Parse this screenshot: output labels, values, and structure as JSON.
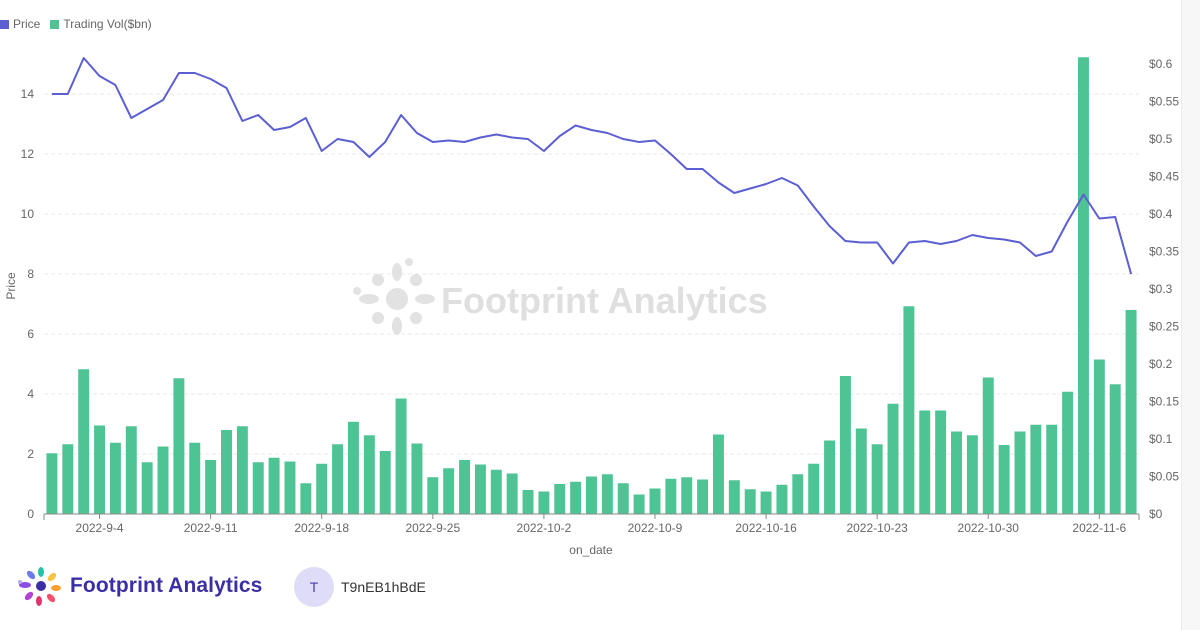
{
  "legend": {
    "price_label": "Price",
    "volume_label": "Trading Vol($bn)"
  },
  "colors": {
    "price": "#5b5fd1",
    "volume": "#4ec495",
    "grid": "#e8e8e8",
    "axis_text": "#666666",
    "watermark": "#dddddd"
  },
  "watermark_text": "Footprint Analytics",
  "footer": {
    "brand_name": "Footprint Analytics",
    "user_initial": "T",
    "user_name": "T9nEB1hBdE",
    "brand_icon": "footprint-flower-logo"
  },
  "chart_data": {
    "type": "bar+line",
    "xlabel": "on_date",
    "ylabel_left": "Price",
    "ylabel_right": "",
    "ylim_left": [
      0,
      15
    ],
    "ylim_right": [
      0,
      0.6
    ],
    "left_ticks": [
      0,
      2,
      4,
      6,
      8,
      10,
      12,
      14
    ],
    "right_ticks": [
      "$0",
      "$0.05",
      "$0.1",
      "$0.15",
      "$0.2",
      "$0.25",
      "$0.3",
      "$0.35",
      "$0.4",
      "$0.45",
      "$0.5",
      "$0.55",
      "$0.6"
    ],
    "right_tick_values": [
      0,
      0.05,
      0.1,
      0.15,
      0.2,
      0.25,
      0.3,
      0.35,
      0.4,
      0.45,
      0.5,
      0.55,
      0.6
    ],
    "x_tick_labels": [
      "2022-9-4",
      "2022-9-11",
      "2022-9-18",
      "2022-9-25",
      "2022-10-2",
      "2022-10-9",
      "2022-10-16",
      "2022-10-23",
      "2022-10-30",
      "2022-11-6"
    ],
    "x_tick_indices": [
      3,
      10,
      17,
      24,
      31,
      38,
      45,
      52,
      59,
      66
    ],
    "grid": true,
    "legend_position": "top-left",
    "dates": [
      "2022-9-1",
      "2022-9-2",
      "2022-9-3",
      "2022-9-4",
      "2022-9-5",
      "2022-9-6",
      "2022-9-7",
      "2022-9-8",
      "2022-9-9",
      "2022-9-10",
      "2022-9-11",
      "2022-9-12",
      "2022-9-13",
      "2022-9-14",
      "2022-9-15",
      "2022-9-16",
      "2022-9-17",
      "2022-9-18",
      "2022-9-19",
      "2022-9-20",
      "2022-9-21",
      "2022-9-22",
      "2022-9-23",
      "2022-9-24",
      "2022-9-25",
      "2022-9-26",
      "2022-9-27",
      "2022-9-28",
      "2022-9-29",
      "2022-9-30",
      "2022-10-1",
      "2022-10-2",
      "2022-10-3",
      "2022-10-4",
      "2022-10-5",
      "2022-10-6",
      "2022-10-7",
      "2022-10-8",
      "2022-10-9",
      "2022-10-10",
      "2022-10-11",
      "2022-10-12",
      "2022-10-13",
      "2022-10-14",
      "2022-10-15",
      "2022-10-16",
      "2022-10-17",
      "2022-10-18",
      "2022-10-19",
      "2022-10-20",
      "2022-10-21",
      "2022-10-22",
      "2022-10-23",
      "2022-10-24",
      "2022-10-25",
      "2022-10-26",
      "2022-10-27",
      "2022-10-28",
      "2022-10-29",
      "2022-10-30",
      "2022-10-31",
      "2022-11-1",
      "2022-11-2",
      "2022-11-3",
      "2022-11-4",
      "2022-11-5",
      "2022-11-6",
      "2022-11-7",
      "2022-11-8"
    ],
    "series": [
      {
        "name": "Price",
        "axis": "left",
        "kind": "line",
        "values": [
          14.0,
          14.0,
          15.2,
          14.6,
          14.3,
          13.2,
          13.5,
          13.8,
          14.7,
          14.7,
          14.5,
          14.2,
          13.1,
          13.3,
          12.8,
          12.9,
          13.2,
          12.1,
          12.5,
          12.4,
          11.9,
          12.4,
          13.3,
          12.7,
          12.4,
          12.45,
          12.4,
          12.55,
          12.65,
          12.55,
          12.5,
          12.1,
          12.6,
          12.95,
          12.8,
          12.7,
          12.5,
          12.4,
          12.45,
          12.0,
          11.5,
          11.5,
          11.05,
          10.7,
          10.85,
          11.0,
          11.2,
          10.95,
          10.25,
          9.6,
          9.1,
          9.05,
          9.05,
          8.35,
          9.05,
          9.1,
          9.0,
          9.1,
          9.3,
          9.2,
          9.15,
          9.05,
          8.6,
          8.75,
          9.75,
          10.65,
          9.85,
          9.9,
          8.0
        ]
      },
      {
        "name": "Trading Vol($bn)",
        "axis": "right",
        "kind": "bar",
        "values": [
          0.081,
          0.093,
          0.193,
          0.118,
          0.095,
          0.117,
          0.069,
          0.09,
          0.181,
          0.095,
          0.072,
          0.112,
          0.117,
          0.069,
          0.075,
          0.07,
          0.041,
          0.067,
          0.093,
          0.123,
          0.105,
          0.084,
          0.154,
          0.094,
          0.049,
          0.061,
          0.072,
          0.066,
          0.059,
          0.054,
          0.032,
          0.03,
          0.04,
          0.043,
          0.05,
          0.053,
          0.041,
          0.026,
          0.034,
          0.047,
          0.049,
          0.046,
          0.106,
          0.045,
          0.033,
          0.03,
          0.039,
          0.053,
          0.067,
          0.098,
          0.184,
          0.114,
          0.093,
          0.147,
          0.277,
          0.138,
          0.138,
          0.11,
          0.105,
          0.182,
          0.092,
          0.11,
          0.119,
          0.119,
          0.163,
          0.609,
          0.206,
          0.173,
          0.272
        ]
      }
    ]
  }
}
